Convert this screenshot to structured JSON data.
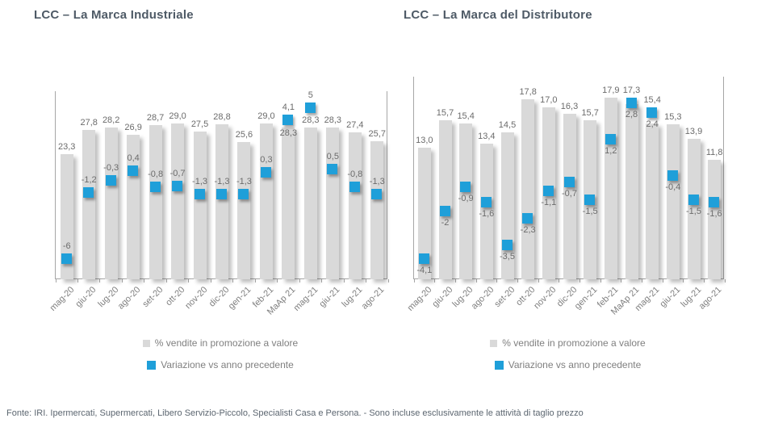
{
  "page": {
    "footer": "Fonte: IRI. Ipermercati, Supermercati, Libero Servizio-Piccolo, Specialisti Casa e Persona. - Sono incluse esclusivamente le attività di taglio prezzo"
  },
  "colors": {
    "bar": "#D9D9D9",
    "marker": "#1F9FD9",
    "title": "#4E5A66",
    "value_label": "#6B6B6B",
    "axis": "#A6A6A6",
    "tick_label": "#7F7F7F",
    "legend_text": "#7F7F7F"
  },
  "legend": {
    "bar_label": "% vendite in promozione a valore",
    "marker_label": "Variazione vs anno precedente"
  },
  "chart_data": [
    {
      "type": "bar",
      "title": "LCC – La Marca Industriale",
      "categories": [
        "mag-20",
        "giu-20",
        "lug-20",
        "ago-20",
        "set-20",
        "ott-20",
        "nov-20",
        "dic-20",
        "gen-21",
        "feb-21",
        "MaAp 21",
        "mag-21",
        "giu-21",
        "lug-21",
        "ago-21"
      ],
      "series": [
        {
          "name": "% vendite in promozione a valore",
          "type": "bar",
          "values": [
            23.3,
            27.8,
            28.2,
            26.9,
            28.7,
            29.0,
            27.5,
            28.8,
            25.6,
            29.0,
            28.3,
            28.3,
            28.3,
            27.4,
            25.7
          ],
          "labels": [
            "23,3",
            "27,8",
            "28,2",
            "26,9",
            "28,7",
            "29,0",
            "27,5",
            "28,8",
            "25,6",
            "29,0",
            "28,3",
            "28,3",
            "28,3",
            "27,4",
            "25,7"
          ]
        },
        {
          "name": "Variazione vs anno precedente",
          "type": "point",
          "values": [
            -6,
            -1.2,
            -0.3,
            0.4,
            -0.8,
            -0.7,
            -1.3,
            -1.3,
            -1.3,
            0.3,
            4.1,
            5,
            0.5,
            -0.8,
            -1.3
          ],
          "labels": [
            "-6",
            "-1,2",
            "-0,3",
            "0,4",
            "-0,8",
            "-0,7",
            "-1,3",
            "-1,3",
            "-1,3",
            "0,3",
            "4,1",
            "5",
            "0,5",
            "-0,8",
            "-1,3"
          ]
        }
      ],
      "bar_axis": {
        "min": 0,
        "max": 35
      },
      "marker_axis_range": [
        -7.5,
        6.25
      ],
      "marker_label_position": "above",
      "grid": false,
      "legend_position": "bottom"
    },
    {
      "type": "bar",
      "title": "LCC – La Marca del Distributore",
      "categories": [
        "mag-20",
        "giu-20",
        "lug-20",
        "ago-20",
        "set-20",
        "ott-20",
        "nov-20",
        "dic-20",
        "gen-21",
        "feb-21",
        "MaAp 21",
        "mag-21",
        "giu-21",
        "lug-21",
        "ago-21"
      ],
      "series": [
        {
          "name": "% vendite in promozione a valore",
          "type": "bar",
          "values": [
            13.0,
            15.7,
            15.4,
            13.4,
            14.5,
            17.8,
            17.0,
            16.3,
            15.7,
            17.9,
            17.3,
            15.4,
            15.3,
            13.9,
            11.8
          ],
          "labels": [
            "13,0",
            "15,7",
            "15,4",
            "13,4",
            "14,5",
            "17,8",
            "17,0",
            "16,3",
            "15,7",
            "17,9",
            "17,3",
            "15,4",
            "15,3",
            "13,9",
            "11,8"
          ]
        },
        {
          "name": "Variazione vs anno precedente",
          "type": "point",
          "values": [
            -4.1,
            -2,
            -0.9,
            -1.6,
            -3.5,
            -2.3,
            -1.1,
            -0.7,
            -1.5,
            1.2,
            2.8,
            2.4,
            -0.4,
            -1.5,
            -1.6
          ],
          "labels": [
            "-4,1",
            "-2",
            "-0,9",
            "-1,6",
            "-3,5",
            "-2,3",
            "-1,1",
            "-0,7",
            "-1,5",
            "1,2",
            "2,8",
            "2,4",
            "-0,4",
            "-1,5",
            "-1,6"
          ]
        }
      ],
      "bar_axis": {
        "min": 0,
        "max": 20
      },
      "marker_axis_range": [
        -5,
        4
      ],
      "marker_label_position": "below",
      "grid": false,
      "legend_position": "bottom"
    }
  ]
}
